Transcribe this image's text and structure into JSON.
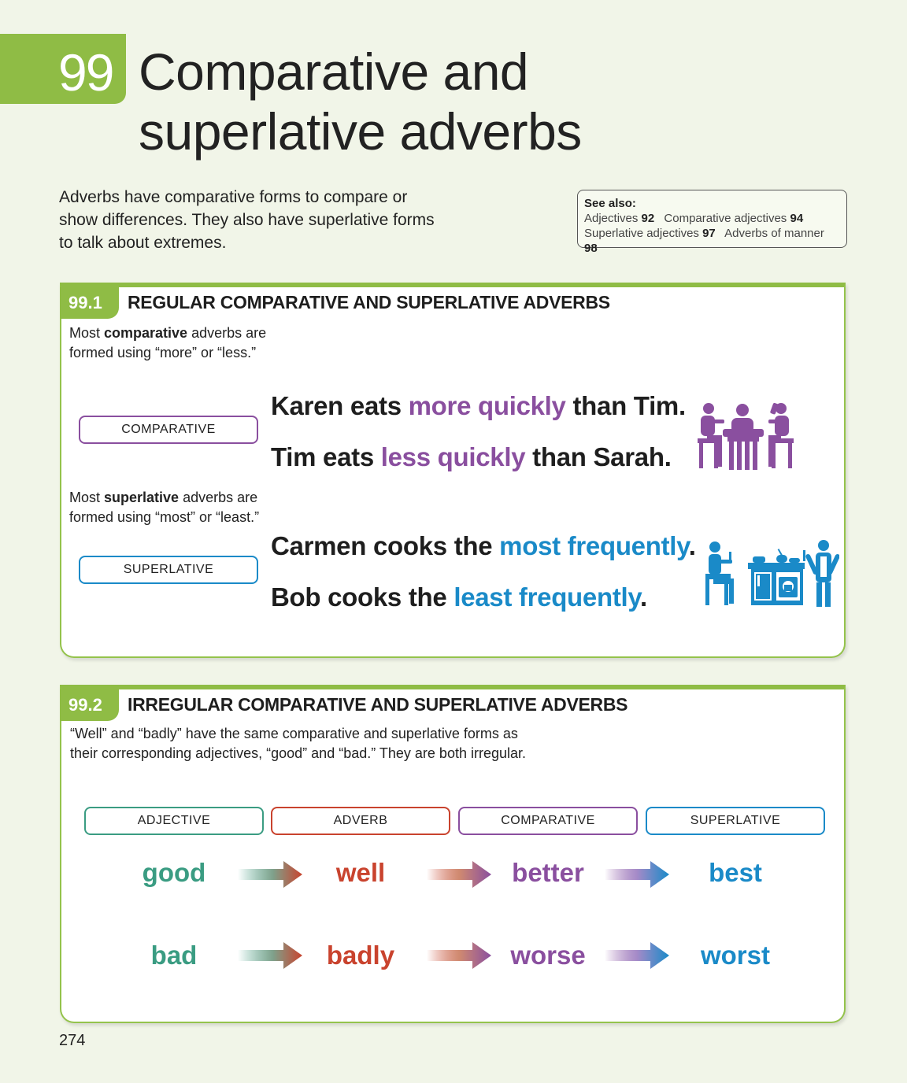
{
  "chapter": {
    "number": "99",
    "title_line1": "Comparative and",
    "title_line2": "superlative adverbs"
  },
  "intro": "Adverbs have comparative forms to compare or show differences. They also have superlative forms to talk about extremes.",
  "see_also": {
    "heading": "See also:",
    "refs": [
      {
        "label": "Adjectives",
        "page": "92"
      },
      {
        "label": "Comparative adjectives",
        "page": "94"
      },
      {
        "label": "Superlative adjectives",
        "page": "97"
      },
      {
        "label": "Adverbs of manner",
        "page": "98"
      }
    ]
  },
  "section1": {
    "number": "99.1",
    "title": "REGULAR COMPARATIVE AND SUPERLATIVE ADVERBS",
    "comparative_note": {
      "pre": "Most ",
      "bold": "comparative",
      "post": " adverbs are",
      "line2": "formed using “more” or “less.”"
    },
    "superlative_note": {
      "pre": "Most ",
      "bold": "superlative",
      "post": " adverbs are",
      "line2": "formed using “most” or “least.”"
    },
    "comparative_label": "COMPARATIVE",
    "superlative_label": "SUPERLATIVE",
    "sentences": [
      {
        "pre": "Karen eats ",
        "hl": "more quickly",
        "post": " than Tim."
      },
      {
        "pre": "Tim eats ",
        "hl": "less quickly",
        "post": " than Sarah."
      },
      {
        "pre": "Carmen cooks the ",
        "hl": "most frequently",
        "post": "."
      },
      {
        "pre": "Bob cooks the ",
        "hl": "least frequently",
        "post": "."
      }
    ],
    "icons": [
      "people-eating-at-table-icon",
      "person-watching-cook-in-kitchen-icon"
    ]
  },
  "section2": {
    "number": "99.2",
    "title": "IRREGULAR COMPARATIVE AND SUPERLATIVE ADVERBS",
    "note_line1": "“Well” and “badly” have the same comparative and superlative forms as",
    "note_line2": "their corresponding adjectives, “good” and “bad.” They are both irregular.",
    "columns": [
      "ADJECTIVE",
      "ADVERB",
      "COMPARATIVE",
      "SUPERLATIVE"
    ],
    "rows": [
      [
        "good",
        "well",
        "better",
        "best"
      ],
      [
        "bad",
        "badly",
        "worse",
        "worst"
      ]
    ]
  },
  "colors": {
    "green": "#8fbc45",
    "purple": "#8a4f9f",
    "blue": "#1a8ac8",
    "teal": "#3a9c82",
    "red": "#c9432e"
  },
  "page_number": "274"
}
